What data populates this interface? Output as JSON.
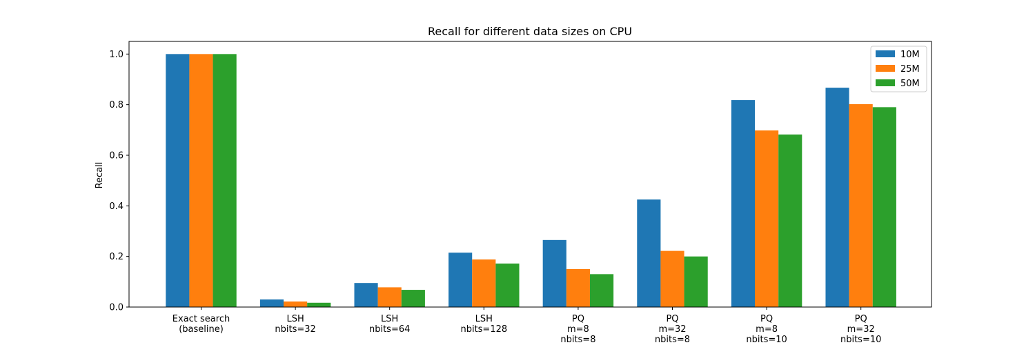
{
  "chart_data": {
    "type": "bar",
    "title": "Recall for different data sizes on CPU",
    "xlabel": "",
    "ylabel": "Recall",
    "ylim": [
      0,
      1.05
    ],
    "yticks": [
      "0.0",
      "0.2",
      "0.4",
      "0.6",
      "0.8",
      "1.0"
    ],
    "categories": [
      [
        "Exact search",
        "(baseline)"
      ],
      [
        "LSH",
        "nbits=32"
      ],
      [
        "LSH",
        "nbits=64"
      ],
      [
        "LSH",
        "nbits=128"
      ],
      [
        "PQ",
        "m=8",
        "nbits=8"
      ],
      [
        "PQ",
        "m=32",
        "nbits=8"
      ],
      [
        "PQ",
        "m=8",
        "nbits=10"
      ],
      [
        "PQ",
        "m=32",
        "nbits=10"
      ]
    ],
    "series": [
      {
        "name": "10M",
        "color": "#1f77b4",
        "values": [
          1.0,
          0.03,
          0.095,
          0.215,
          0.265,
          0.425,
          0.818,
          0.867
        ]
      },
      {
        "name": "25M",
        "color": "#ff7f0e",
        "values": [
          1.0,
          0.022,
          0.078,
          0.188,
          0.15,
          0.222,
          0.698,
          0.802
        ]
      },
      {
        "name": "50M",
        "color": "#2ca02c",
        "values": [
          1.0,
          0.017,
          0.068,
          0.172,
          0.13,
          0.2,
          0.682,
          0.79
        ]
      }
    ],
    "legend": "top-right",
    "grid": false
  }
}
